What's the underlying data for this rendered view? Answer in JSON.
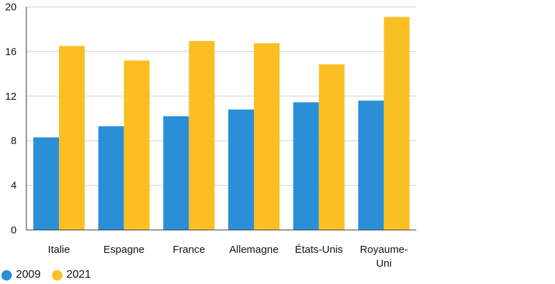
{
  "chart_data": {
    "type": "bar",
    "categories": [
      "Italie",
      "Espagne",
      "France",
      "Allemagne",
      "États-Unis",
      "Royaume-Uni"
    ],
    "category_lines": [
      [
        "Italie"
      ],
      [
        "Espagne"
      ],
      [
        "France"
      ],
      [
        "Allemagne"
      ],
      [
        "États-Unis"
      ],
      [
        "Royaume-",
        "Uni"
      ]
    ],
    "series": [
      {
        "name": "2009",
        "color": "#2a8fd6",
        "values": [
          8.3,
          9.3,
          10.2,
          10.8,
          11.45,
          11.6
        ]
      },
      {
        "name": "2021",
        "color": "#fbbf24",
        "values": [
          16.5,
          15.2,
          16.95,
          16.75,
          14.85,
          19.1
        ]
      }
    ],
    "yticks": [
      0,
      4,
      8,
      12,
      16,
      20
    ],
    "ylim": [
      0,
      20
    ],
    "grid": true,
    "legend_position": "bottom-left",
    "title": "",
    "xlabel": "",
    "ylabel": ""
  }
}
